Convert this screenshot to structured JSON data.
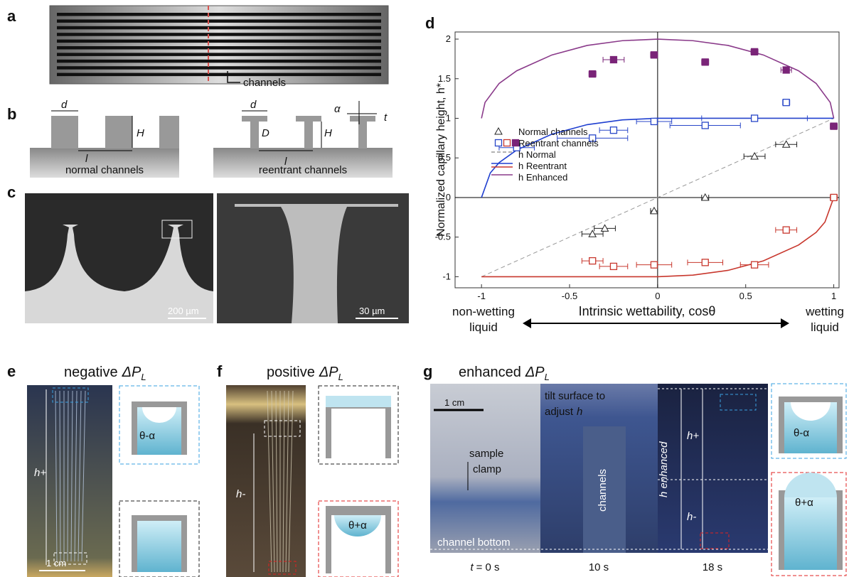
{
  "panel_labels": [
    "a",
    "b",
    "c",
    "d",
    "e",
    "f",
    "g"
  ],
  "panel_a": {
    "channels_label": "channels"
  },
  "panel_b": {
    "normal": {
      "d": "d",
      "H": "H",
      "l": "l",
      "caption": "normal channels"
    },
    "reentrant": {
      "d": "d",
      "D": "D",
      "l": "l",
      "H": "H",
      "alpha": "α",
      "t": "t",
      "caption": "reentrant channels"
    }
  },
  "panel_c": {
    "scale_left": "200 µm",
    "scale_right": "30 µm"
  },
  "chart_data": {
    "type": "scatter",
    "xlabel": "Intrinsic wettability, cosθ",
    "ylabel": "Normalized capillary height, h*",
    "left_annotation": [
      "non-wetting",
      "liquid"
    ],
    "right_annotation": [
      "wetting",
      "liquid"
    ],
    "xlim": [
      -1.15,
      1.03
    ],
    "ylim": [
      -1.14,
      2.09
    ],
    "xticks": [
      -1,
      -0.5,
      0,
      0.5,
      1
    ],
    "yticks": [
      -1,
      -0.5,
      0,
      0.5,
      1,
      1.5,
      2
    ],
    "zero_lines": true,
    "legend": "center left",
    "series": [
      {
        "name": "Normal channels",
        "mode": "markers",
        "marker": "triangle",
        "filled": false,
        "color": "#222222",
        "x": [
          -0.37,
          -0.3,
          -0.02,
          0.27,
          0.55,
          0.73
        ],
        "values": [
          -0.46,
          -0.39,
          -0.17,
          0,
          0.52,
          0.67
        ],
        "xerr": [
          0.06,
          0.06,
          0.02,
          0.02,
          0.06,
          0.06
        ]
      },
      {
        "name": "Reentrant channels",
        "mode": "markers",
        "marker": "square",
        "filled": false,
        "color": "#2846c8",
        "x": [
          -0.8,
          -0.37,
          -0.25,
          -0.02,
          0.27,
          0.55,
          0.73
        ],
        "values": [
          0.63,
          0.75,
          0.85,
          0.96,
          0.91,
          1.0,
          1.2
        ],
        "xerr": [
          0.1,
          0.2,
          0.08,
          0.1,
          0.2,
          0.3,
          0.02
        ]
      },
      {
        "mode": "markers",
        "marker": "square",
        "filled": false,
        "color": "#c8372d",
        "x": [
          -0.37,
          -0.25,
          -0.02,
          0.27,
          0.55,
          0.73,
          1
        ],
        "values": [
          -0.8,
          -0.87,
          -0.85,
          -0.82,
          -0.85,
          -0.41,
          0
        ],
        "xerr": [
          0.06,
          0.08,
          0.1,
          0.1,
          0.08,
          0.06,
          0.02
        ]
      },
      {
        "mode": "markers",
        "marker": "square",
        "filled": true,
        "color": "#7a2478",
        "x": [
          -0.37,
          -0.25,
          -0.02,
          0.27,
          0.55,
          0.73,
          1
        ],
        "values": [
          1.56,
          1.74,
          1.8,
          1.71,
          1.84,
          1.61,
          0.9
        ],
        "xerr": [
          0.02,
          0.06,
          0.02,
          0.02,
          0.02,
          0.03,
          0.02
        ]
      },
      {
        "name": "h Normal",
        "mode": "line",
        "dashed": true,
        "color": "#999999",
        "x": [
          -1,
          1
        ],
        "values": [
          -1,
          1
        ]
      },
      {
        "name": "h Reentrant",
        "mode": "line",
        "dashed": false,
        "color": "#1f3fd0",
        "x": [
          -1,
          -0.95,
          -0.9,
          -0.8,
          -0.6,
          -0.4,
          -0.2,
          0,
          0.5,
          1
        ],
        "values": [
          0,
          0.31,
          0.44,
          0.6,
          0.8,
          0.92,
          0.98,
          1,
          1,
          1
        ]
      },
      {
        "mode": "line",
        "dashed": false,
        "color": "#c8372d",
        "x": [
          -1,
          -0.5,
          0,
          0.2,
          0.4,
          0.6,
          0.8,
          0.9,
          0.95,
          1
        ],
        "values": [
          -1,
          -1,
          -1,
          -0.98,
          -0.92,
          -0.8,
          -0.6,
          -0.44,
          -0.31,
          0
        ]
      },
      {
        "name": "h Enhanced",
        "mode": "line",
        "dashed": false,
        "color": "#8a3a8a",
        "x": [
          -1,
          -0.98,
          -0.9,
          -0.8,
          -0.6,
          -0.4,
          -0.2,
          0,
          0.2,
          0.4,
          0.6,
          0.8,
          0.9,
          0.98,
          1
        ],
        "values": [
          1,
          1.2,
          1.44,
          1.6,
          1.8,
          1.92,
          1.98,
          2,
          1.98,
          1.92,
          1.8,
          1.6,
          1.44,
          1.2,
          1
        ]
      }
    ]
  },
  "panel_e": {
    "title": [
      "negative",
      "ΔP",
      "L"
    ],
    "height": "h+",
    "scale": "1 cm",
    "angle": "θ-α"
  },
  "panel_f": {
    "title": [
      "positive",
      "ΔP",
      "L"
    ],
    "height": "h-",
    "angle": "θ+α"
  },
  "panel_g": {
    "title": [
      "enhanced",
      "ΔP",
      "L"
    ],
    "scale": "1 cm",
    "tilt": [
      "tilt surface to",
      "adjust",
      "h"
    ],
    "clamp": [
      "sample",
      "clamp"
    ],
    "bottom": "channel bottom",
    "channels": "channels",
    "enhanced": "h enhanced",
    "h_plus": "h+",
    "h_minus": "h-",
    "angle_top": "θ-α",
    "angle_bottom": "θ+α",
    "times": [
      [
        "t",
        "= 0 s"
      ],
      "10 s",
      "18 s"
    ]
  }
}
